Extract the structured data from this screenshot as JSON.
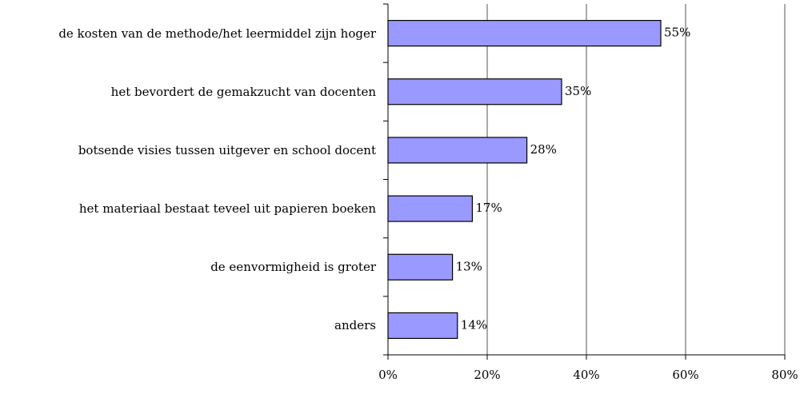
{
  "chart_data": {
    "type": "bar",
    "orientation": "horizontal",
    "categories": [
      "de kosten van de methode/het leermiddel zijn hoger",
      "het bevordert de gemakzucht van docenten",
      "botsende visies tussen uitgever en school docent",
      "het materiaal bestaat teveel uit papieren boeken",
      "de eenvormigheid is groter",
      "anders"
    ],
    "values": [
      55,
      35,
      28,
      17,
      13,
      14
    ],
    "value_labels": [
      "55%",
      "35%",
      "28%",
      "17%",
      "13%",
      "14%"
    ],
    "color": "#9999ff",
    "xlim": [
      0,
      80
    ],
    "xticks": [
      {
        "value": 0,
        "label": "0%"
      },
      {
        "value": 20,
        "label": "20%"
      },
      {
        "value": 40,
        "label": "40%"
      },
      {
        "value": 60,
        "label": "60%"
      },
      {
        "value": 80,
        "label": "80%"
      }
    ],
    "grid": true
  }
}
